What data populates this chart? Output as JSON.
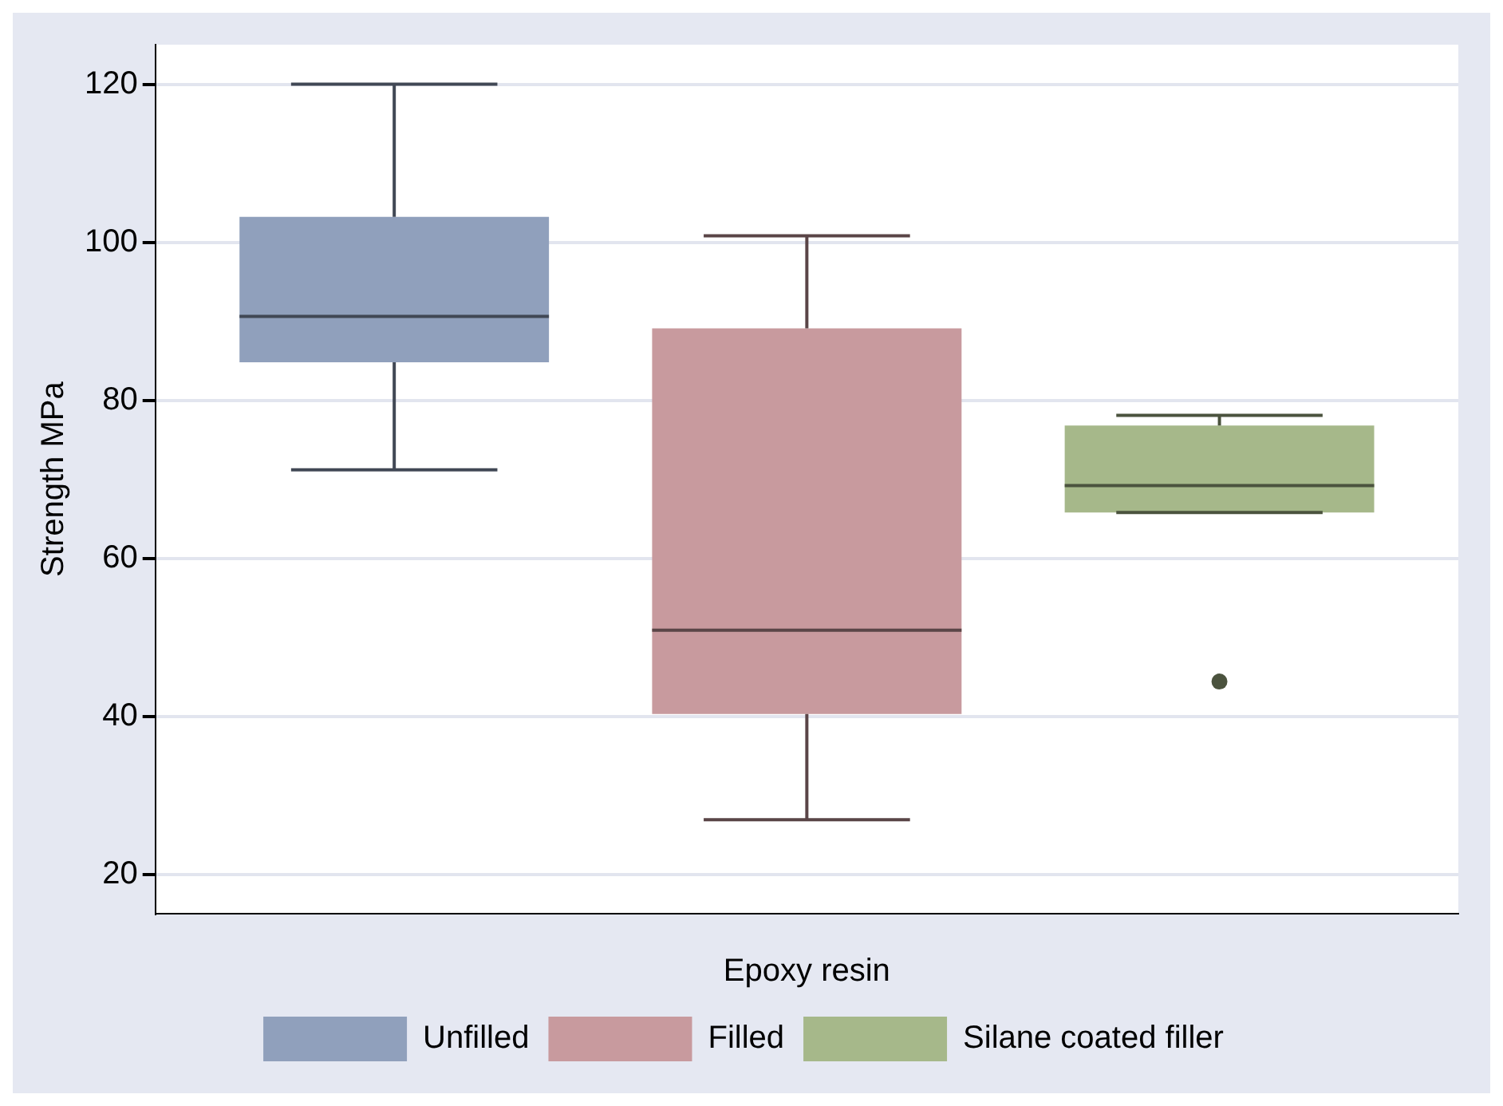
{
  "chart_data": {
    "type": "box",
    "xlabel": "Epoxy resin",
    "ylabel": "Strength MPa",
    "categories": [
      null
    ],
    "ylim": [
      15,
      125
    ],
    "yticks": [
      20,
      40,
      60,
      80,
      100,
      120
    ],
    "grid": "y",
    "legend": "bottom",
    "series": [
      {
        "name": "Unfilled",
        "color": "#90a0bc",
        "boxes": [
          {
            "low": 71.2,
            "q1": 84.8,
            "median": 90.6,
            "q3": 103.2,
            "high": 120
          }
        ]
      },
      {
        "name": "Filled",
        "color": "#c89a9e",
        "boxes": [
          {
            "low": 26.9,
            "q1": 40.3,
            "median": 50.9,
            "q3": 89.1,
            "high": 100.8
          }
        ]
      },
      {
        "name": "Silane coated filler",
        "color": "#a6b88a",
        "boxes": [
          {
            "low": 65.8,
            "q1": 65.8,
            "median": 69.2,
            "q3": 76.8,
            "high": 78.1,
            "outliers": [
              44.4
            ]
          }
        ]
      }
    ]
  }
}
